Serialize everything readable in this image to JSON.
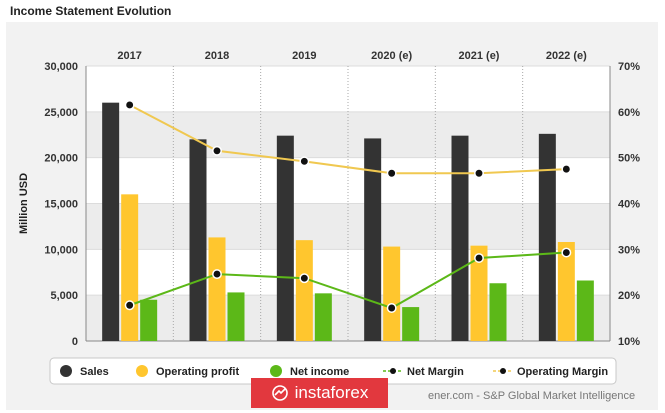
{
  "title": "Income Statement Evolution",
  "chart_data": {
    "type": "bar",
    "categories": [
      "2017",
      "2018",
      "2019",
      "2020 (e)",
      "2021 (e)",
      "2022 (e)"
    ],
    "ylabel": "Million USD",
    "ylim": [
      0,
      30000
    ],
    "y2lim": [
      10,
      70
    ],
    "y_ticks": [
      "0",
      "5,000",
      "10,000",
      "15,000",
      "20,000",
      "25,000",
      "30,000"
    ],
    "y2_ticks": [
      "10%",
      "20%",
      "30%",
      "40%",
      "50%",
      "60%",
      "70%"
    ],
    "series": [
      {
        "name": "Sales",
        "kind": "bar",
        "axis": "left",
        "color": "#333333",
        "values": [
          26000,
          22000,
          22400,
          22100,
          22400,
          22600
        ]
      },
      {
        "name": "Operating profit",
        "kind": "bar",
        "axis": "left",
        "color": "#ffc62e",
        "values": [
          16000,
          11300,
          11000,
          10300,
          10400,
          10800
        ]
      },
      {
        "name": "Net income",
        "kind": "bar",
        "axis": "left",
        "color": "#5cb818",
        "values": [
          4500,
          5300,
          5200,
          3700,
          6300,
          6600
        ]
      },
      {
        "name": "Net Margin",
        "kind": "line",
        "axis": "right",
        "color": "#5cb818",
        "values": [
          17.8,
          24.6,
          23.7,
          17.2,
          28.1,
          29.3
        ]
      },
      {
        "name": "Operating Margin",
        "kind": "line",
        "axis": "right",
        "color": "#f0c850",
        "values": [
          61.5,
          51.5,
          49.2,
          46.6,
          46.6,
          47.5
        ]
      }
    ],
    "legend_position": "bottom",
    "grid": true
  },
  "watermark": "instaforex",
  "source": "ener.com - S&P Global Market Intelligence"
}
